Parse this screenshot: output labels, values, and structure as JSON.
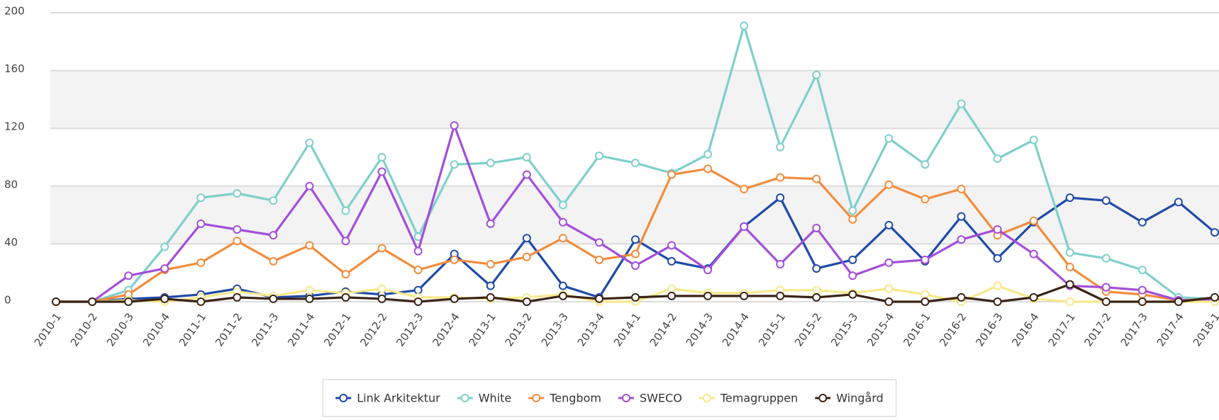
{
  "chart_data": {
    "type": "line",
    "categories": [
      "2010-1",
      "2010-2",
      "2010-3",
      "2010-4",
      "2011-1",
      "2011-2",
      "2011-3",
      "2011-4",
      "2012-1",
      "2012-2",
      "2012-3",
      "2012-4",
      "2013-1",
      "2013-2",
      "2013-3",
      "2013-4",
      "2014-1",
      "2014-2",
      "2014-3",
      "2014-4",
      "2015-1",
      "2015-2",
      "2015-3",
      "2015-4",
      "2016-1",
      "2016-2",
      "2016-3",
      "2016-4",
      "2017-1",
      "2017-2",
      "2017-3",
      "2017-4",
      "2018-1"
    ],
    "series": [
      {
        "name": "Link Arkitektur",
        "color": "#1f4aa8",
        "values": [
          0,
          0,
          2,
          3,
          5,
          9,
          3,
          4,
          7,
          5,
          8,
          33,
          11,
          44,
          11,
          3,
          43,
          28,
          23,
          52,
          72,
          23,
          29,
          53,
          28,
          59,
          30,
          55,
          72,
          70,
          55,
          69,
          48
        ]
      },
      {
        "name": "White",
        "color": "#7fcfcb",
        "values": [
          0,
          0,
          8,
          38,
          72,
          75,
          70,
          110,
          63,
          100,
          45,
          95,
          96,
          100,
          67,
          101,
          96,
          89,
          102,
          191,
          107,
          157,
          63,
          113,
          95,
          137,
          99,
          112,
          34,
          30,
          22,
          3,
          2
        ]
      },
      {
        "name": "Tengbom",
        "color": "#f28c3c",
        "values": [
          0,
          0,
          5,
          22,
          27,
          42,
          28,
          39,
          19,
          37,
          22,
          29,
          26,
          31,
          44,
          29,
          33,
          88,
          92,
          78,
          86,
          85,
          57,
          81,
          71,
          78,
          46,
          56,
          24,
          7,
          5,
          1,
          2
        ]
      },
      {
        "name": "SWECO",
        "color": "#a24fd9",
        "values": [
          0,
          0,
          18,
          23,
          54,
          50,
          46,
          80,
          42,
          90,
          35,
          122,
          54,
          88,
          55,
          41,
          25,
          39,
          22,
          52,
          26,
          51,
          18,
          27,
          29,
          43,
          50,
          33,
          11,
          10,
          8,
          1,
          1
        ]
      },
      {
        "name": "Temagruppen",
        "color": "#f7e98a",
        "values": [
          0,
          0,
          1,
          0,
          3,
          7,
          4,
          8,
          6,
          9,
          3,
          3,
          2,
          3,
          5,
          0,
          0,
          9,
          6,
          6,
          8,
          8,
          6,
          9,
          5,
          0,
          11,
          2,
          0,
          0,
          0,
          0,
          0
        ]
      },
      {
        "name": "Wingård",
        "color": "#3b2415",
        "values": [
          0,
          0,
          0,
          2,
          0,
          3,
          2,
          2,
          3,
          2,
          0,
          2,
          3,
          0,
          4,
          2,
          3,
          4,
          4,
          4,
          4,
          3,
          5,
          0,
          0,
          3,
          0,
          3,
          12,
          0,
          0,
          0,
          3
        ]
      }
    ],
    "ylim": [
      0,
      200
    ],
    "yticks": [
      0,
      40,
      80,
      120,
      160,
      200
    ],
    "grid": true,
    "legend": "bottom"
  }
}
